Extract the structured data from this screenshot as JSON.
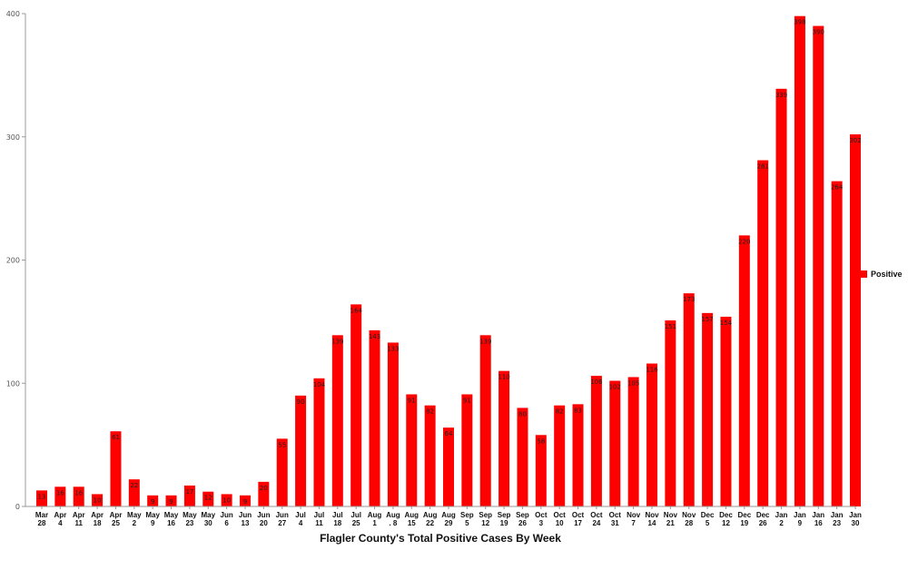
{
  "chart_data": {
    "type": "bar",
    "title": "Flagler County's Total Positive Cases By Week",
    "categories": [
      [
        "Mar",
        "28"
      ],
      [
        "Apr",
        "4"
      ],
      [
        "Apr",
        "11"
      ],
      [
        "Apr",
        "18"
      ],
      [
        "Apr",
        "25"
      ],
      [
        "May",
        "2"
      ],
      [
        "May",
        "9"
      ],
      [
        "May",
        "16"
      ],
      [
        "May",
        "23"
      ],
      [
        "May",
        "30"
      ],
      [
        "Jun",
        "6"
      ],
      [
        "Jun",
        "13"
      ],
      [
        "Jun",
        "20"
      ],
      [
        "Jun",
        "27"
      ],
      [
        "Jul",
        "4"
      ],
      [
        "Jul",
        "11"
      ],
      [
        "Jul",
        "18"
      ],
      [
        "Jul",
        "25"
      ],
      [
        "Aug",
        "1"
      ],
      [
        "Aug",
        ". 8"
      ],
      [
        "Aug",
        "15"
      ],
      [
        "Aug",
        "22"
      ],
      [
        "Aug",
        "29"
      ],
      [
        "Sep",
        "5"
      ],
      [
        "Sep",
        "12"
      ],
      [
        "Sep",
        "19"
      ],
      [
        "Sep",
        "26"
      ],
      [
        "Oct",
        "3"
      ],
      [
        "Oct",
        "10"
      ],
      [
        "Oct",
        "17"
      ],
      [
        "Oct",
        "24"
      ],
      [
        "Oct",
        "31"
      ],
      [
        "Nov",
        "7"
      ],
      [
        "Nov",
        "14"
      ],
      [
        "Nov",
        "21"
      ],
      [
        "Nov",
        "28"
      ],
      [
        "Dec",
        "5"
      ],
      [
        "Dec",
        "12"
      ],
      [
        "Dec",
        "19"
      ],
      [
        "Dec",
        "26"
      ],
      [
        "Jan",
        "2"
      ],
      [
        "Jan",
        "9"
      ],
      [
        "Jan",
        "16"
      ],
      [
        "Jan",
        "23"
      ],
      [
        "Jan",
        "30"
      ]
    ],
    "series": [
      {
        "name": "Positive",
        "color": "#ff0000",
        "values": [
          13,
          16,
          16,
          10,
          61,
          22,
          9,
          9,
          17,
          12,
          10,
          9,
          20,
          55,
          90,
          104,
          139,
          164,
          143,
          133,
          91,
          82,
          64,
          91,
          139,
          110,
          80,
          58,
          82,
          83,
          106,
          102,
          105,
          116,
          151,
          173,
          157,
          154,
          220,
          281,
          339,
          398,
          390,
          264,
          302
        ]
      }
    ],
    "ylim": [
      0,
      400
    ],
    "yticks": [
      0,
      100,
      200,
      300,
      400
    ],
    "legend": {
      "position": "right",
      "label": "Positive"
    },
    "grid": false
  }
}
